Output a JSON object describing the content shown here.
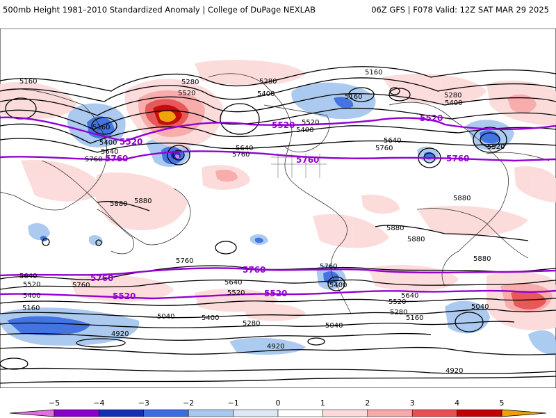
{
  "header": {
    "left_title": "500mb Height 1981–2010 Standardized Anomaly | College of DuPage NEXLAB",
    "right_title": "06Z GFS | F078 Valid: 12Z SAT MAR 29 2025"
  },
  "map": {
    "contour_labels": {
      "l5160_a": "5160",
      "l5160_b": "5160",
      "l5160_c": "5160",
      "l5160_d": "5160",
      "l5160_e": "5160",
      "l5160_f": "5160",
      "l5280_a": "5280",
      "l5280_b": "5280",
      "l5280_c": "5280",
      "l5280_d": "5280",
      "l5280_e": "5280",
      "l5400_a": "5400",
      "l5400_b": "5400",
      "l5400_c": "5400",
      "l5400_d": "5400",
      "l5400_e": "5400",
      "l5400_f": "5400",
      "l5400_g": "5400",
      "l5520_a": "5520",
      "l5520_b": "5520",
      "l5520_c": "5520",
      "l5520_d": "5520",
      "l5520_e": "5520",
      "l5520_f": "5520",
      "l5640_a": "5640",
      "l5640_b": "5640",
      "l5640_c": "5640",
      "l5640_d": "5640",
      "l5640_e": "5640",
      "l5640_f": "5640",
      "l5760_a": "5760",
      "l5760_b": "5760",
      "l5760_c": "5760",
      "l5760_d": "5760",
      "l5760_e": "5760",
      "l5760_f": "5760",
      "l5880_a": "5880",
      "l5880_b": "5880",
      "l5880_c": "5880",
      "l5880_d": "5880",
      "l5880_e": "5880",
      "l5880_f": "5880",
      "l5040_a": "5040",
      "l5040_b": "5040",
      "l5040_c": "5040",
      "l4920_a": "4920",
      "l4920_b": "4920",
      "l4920_c": "4920"
    },
    "highlight_labels": {
      "h5520_a": "5520",
      "h5520_b": "5520",
      "h5520_c": "5520",
      "h5520_d": "5520",
      "h5520_e": "5520",
      "h5760_a": "5760",
      "h5760_b": "5760",
      "h5760_c": "5760",
      "h5760_d": "5760",
      "h5760_e": "5760"
    },
    "highlight_color": "#9400d3"
  },
  "colorbar": {
    "ticks": [
      "−5",
      "−4",
      "−3",
      "−2",
      "−1",
      "0",
      "1",
      "2",
      "3",
      "4",
      "5"
    ],
    "colors": [
      "#e070e0",
      "#8a00c8",
      "#1030b0",
      "#3a6de0",
      "#a8c8f0",
      "#dce8f8",
      "#ffffff",
      "#fcdada",
      "#f8a8a8",
      "#e85050",
      "#c00000",
      "#f0a000"
    ]
  }
}
